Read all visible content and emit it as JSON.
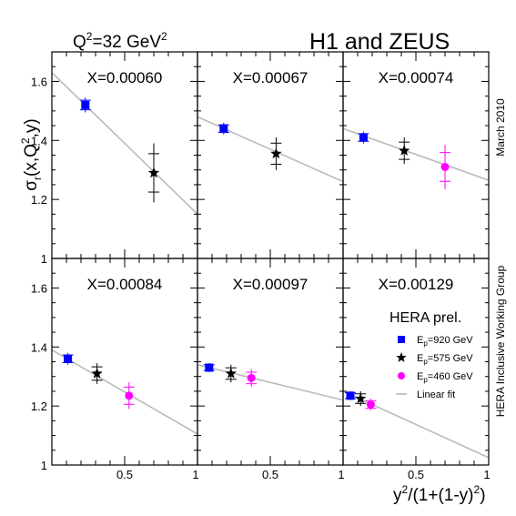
{
  "header": {
    "q2_label": "Q",
    "q2_sup": "2",
    "q2_value": "=32 GeV",
    "q2_unit_sup": "2",
    "title": "H1 and ZEUS"
  },
  "side_labels": {
    "date": "March 2010",
    "group": "HERA Inclusive Working Group"
  },
  "axes": {
    "ylabel": "σr(x,Q2,y)",
    "xlabel": "y2/(1+(1-y)2)"
  },
  "legend": {
    "title": "HERA prel.",
    "entries": [
      {
        "label": "E",
        "sub": "p",
        "rest": "=920 GeV",
        "marker": "square",
        "color": "#0000ff"
      },
      {
        "label": "E",
        "sub": "p",
        "rest": "=575 GeV",
        "marker": "star",
        "color": "#000000"
      },
      {
        "label": "E",
        "sub": "p",
        "rest": "=460 GeV",
        "marker": "circle",
        "color": "#ff00ff"
      },
      {
        "label": "Linear fit",
        "marker": "line",
        "color": "#bbbbbb"
      }
    ]
  },
  "colors": {
    "e920": "#0000ff",
    "e575": "#000000",
    "e460": "#ff00ff",
    "fit": "#bbbbbb"
  },
  "chart_data": {
    "type": "scatter",
    "ylim": [
      1.0,
      1.7
    ],
    "xlim": [
      0,
      1
    ],
    "y_ticks": [
      "1",
      "1.2",
      "1.4",
      "1.6"
    ],
    "x_ticks": [
      "0.5",
      "1"
    ],
    "panels": [
      {
        "label": "X=0.00060",
        "fit": [
          1.63,
          1.15
        ],
        "points": [
          {
            "series": "920",
            "x": 0.23,
            "y": 1.52,
            "err": 0.025
          },
          {
            "series": "575",
            "x": 0.7,
            "y": 1.29,
            "err": 0.1
          }
        ]
      },
      {
        "label": "X=0.00067",
        "fit": [
          1.48,
          1.26
        ],
        "points": [
          {
            "series": "920",
            "x": 0.18,
            "y": 1.44,
            "err": 0.02
          },
          {
            "series": "575",
            "x": 0.54,
            "y": 1.355,
            "err": 0.055
          }
        ]
      },
      {
        "label": "X=0.00074",
        "fit": [
          1.44,
          1.265
        ],
        "points": [
          {
            "series": "920",
            "x": 0.14,
            "y": 1.41,
            "err": 0.02
          },
          {
            "series": "575",
            "x": 0.42,
            "y": 1.365,
            "err": 0.045
          },
          {
            "series": "460",
            "x": 0.7,
            "y": 1.31,
            "err": 0.075
          }
        ]
      },
      {
        "label": "X=0.00084",
        "fit": [
          1.39,
          1.105
        ],
        "points": [
          {
            "series": "920",
            "x": 0.11,
            "y": 1.36,
            "err": 0.02
          },
          {
            "series": "575",
            "x": 0.31,
            "y": 1.31,
            "err": 0.035
          },
          {
            "series": "460",
            "x": 0.53,
            "y": 1.235,
            "err": 0.045
          }
        ]
      },
      {
        "label": "X=0.00097",
        "fit": [
          1.34,
          1.22
        ],
        "points": [
          {
            "series": "920",
            "x": 0.08,
            "y": 1.33,
            "err": 0.015
          },
          {
            "series": "575",
            "x": 0.23,
            "y": 1.31,
            "err": 0.03
          },
          {
            "series": "460",
            "x": 0.37,
            "y": 1.295,
            "err": 0.03
          }
        ]
      },
      {
        "label": "X=0.00129",
        "fit": [
          1.25,
          1.025
        ],
        "points": [
          {
            "series": "920",
            "x": 0.05,
            "y": 1.235,
            "err": 0.015
          },
          {
            "series": "575",
            "x": 0.12,
            "y": 1.225,
            "err": 0.025
          },
          {
            "series": "460",
            "x": 0.19,
            "y": 1.205,
            "err": 0.02
          }
        ]
      }
    ]
  }
}
